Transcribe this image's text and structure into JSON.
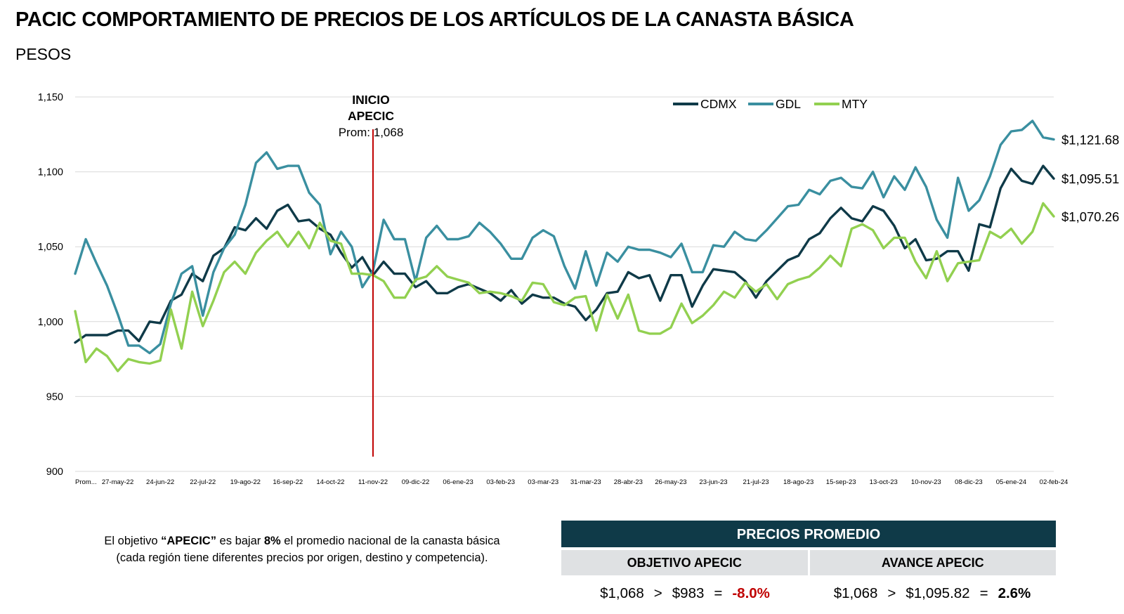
{
  "header": {
    "title": "PACIC COMPORTAMIENTO DE PRECIOS DE LOS ARTÍCULOS DE LA CANASTA BÁSICA",
    "subtitle": "PESOS"
  },
  "chart_data": {
    "type": "line",
    "title": "",
    "xlabel": "",
    "ylabel": "",
    "ylim": [
      900,
      1150
    ],
    "yticks": [
      900,
      950,
      1000,
      1050,
      1100,
      1150
    ],
    "ytick_labels": [
      "900",
      "950",
      "1,000",
      "1,050",
      "1,100",
      "1,150"
    ],
    "grid": true,
    "legend_position": "top-right",
    "x_tick_labels": [
      "Prom...",
      "27-may-22",
      "24-jun-22",
      "22-jul-22",
      "19-ago-22",
      "16-sep-22",
      "14-oct-22",
      "11-nov-22",
      "09-dic-22",
      "06-ene-23",
      "03-feb-23",
      "03-mar-23",
      "31-mar-23",
      "28-abr-23",
      "26-may-23",
      "23-jun-23",
      "21-jul-23",
      "18-ago-23",
      "15-sep-23",
      "13-oct-23",
      "10-nov-23",
      "08-dic-23",
      "05-ene-24",
      "02-feb-24"
    ],
    "annotation": {
      "lines": [
        "INICIO",
        "APECIC",
        "Prom: 1,068"
      ],
      "x_index": 28,
      "color": "#c00000"
    },
    "series": [
      {
        "name": "CDMX",
        "color": "#0f3a48",
        "end_label": "$1,095.51",
        "values": [
          986,
          991,
          991,
          991,
          994,
          994,
          987,
          1000,
          999,
          1014,
          1018,
          1032,
          1027,
          1044,
          1049,
          1063,
          1061,
          1069,
          1062,
          1074,
          1078,
          1067,
          1068,
          1062,
          1058,
          1046,
          1036,
          1043,
          1031,
          1040,
          1032,
          1032,
          1023,
          1027,
          1019,
          1019,
          1023,
          1025,
          1022,
          1019,
          1014,
          1021,
          1012,
          1018,
          1016,
          1016,
          1012,
          1010,
          1001,
          1008,
          1019,
          1020,
          1033,
          1029,
          1031,
          1014,
          1031,
          1031,
          1010,
          1024,
          1035,
          1034,
          1033,
          1027,
          1016,
          1027,
          1034,
          1041,
          1044,
          1055,
          1059,
          1069,
          1076,
          1069,
          1067,
          1077,
          1074,
          1064,
          1049,
          1055,
          1041,
          1042,
          1047,
          1047,
          1034,
          1065,
          1063,
          1089,
          1102,
          1094,
          1092,
          1104,
          1095.51
        ]
      },
      {
        "name": "GDL",
        "color": "#3a8fa0",
        "end_label": "$1,121.68",
        "values": [
          1032,
          1055,
          1039,
          1024,
          1005,
          984,
          984,
          979,
          985,
          1012,
          1032,
          1037,
          1004,
          1033,
          1049,
          1058,
          1078,
          1106,
          1113,
          1102,
          1104,
          1104,
          1086,
          1078,
          1045,
          1060,
          1050,
          1023,
          1034,
          1068,
          1055,
          1055,
          1027,
          1056,
          1064,
          1055,
          1055,
          1057,
          1066,
          1060,
          1052,
          1042,
          1042,
          1056,
          1061,
          1057,
          1037,
          1022,
          1047,
          1024,
          1046,
          1040,
          1050,
          1048,
          1048,
          1046,
          1043,
          1052,
          1033,
          1033,
          1051,
          1050,
          1060,
          1055,
          1054,
          1061,
          1069,
          1077,
          1078,
          1088,
          1085,
          1094,
          1096,
          1090,
          1089,
          1100,
          1083,
          1097,
          1088,
          1103,
          1090,
          1068,
          1056,
          1096,
          1074,
          1081,
          1097,
          1118,
          1127,
          1128,
          1134,
          1123,
          1121.68
        ]
      },
      {
        "name": "MTY",
        "color": "#92d050",
        "end_label": "$1,070.26",
        "values": [
          1007,
          973,
          982,
          977,
          967,
          975,
          973,
          972,
          974,
          1008,
          982,
          1020,
          997,
          1014,
          1033,
          1040,
          1032,
          1046,
          1054,
          1060,
          1050,
          1060,
          1049,
          1066,
          1054,
          1052,
          1032,
          1032,
          1031,
          1027,
          1016,
          1016,
          1028,
          1030,
          1037,
          1030,
          1028,
          1026,
          1019,
          1020,
          1019,
          1017,
          1014,
          1026,
          1025,
          1013,
          1011,
          1016,
          1017,
          994,
          1018,
          1002,
          1018,
          994,
          992,
          992,
          996,
          1012,
          999,
          1004,
          1011,
          1020,
          1016,
          1026,
          1020,
          1025,
          1015,
          1025,
          1028,
          1030,
          1036,
          1044,
          1037,
          1062,
          1065,
          1061,
          1049,
          1056,
          1056,
          1040,
          1029,
          1047,
          1027,
          1039,
          1040,
          1041,
          1060,
          1056,
          1062,
          1052,
          1060,
          1079,
          1070.26
        ]
      }
    ]
  },
  "note": {
    "t1": "El objetivo ",
    "t2": "“APECIC”",
    "t3": " es bajar ",
    "t4": "8%",
    "t5": " el promedio nacional de la canasta básica (cada región tiene diferentes precios por origen, destino y competencia)."
  },
  "panel": {
    "header": "PRECIOS PROMEDIO",
    "objetivo": {
      "label": "OBJETIVO APECIC",
      "base": "$1,068",
      "op": ">",
      "target": "$983",
      "eq": "=",
      "pct": "-8.0%"
    },
    "avance": {
      "label": "AVANCE APECIC",
      "base": "$1,068",
      "op": ">",
      "target": "$1,095.82",
      "eq": "=",
      "pct": "2.6%"
    }
  }
}
